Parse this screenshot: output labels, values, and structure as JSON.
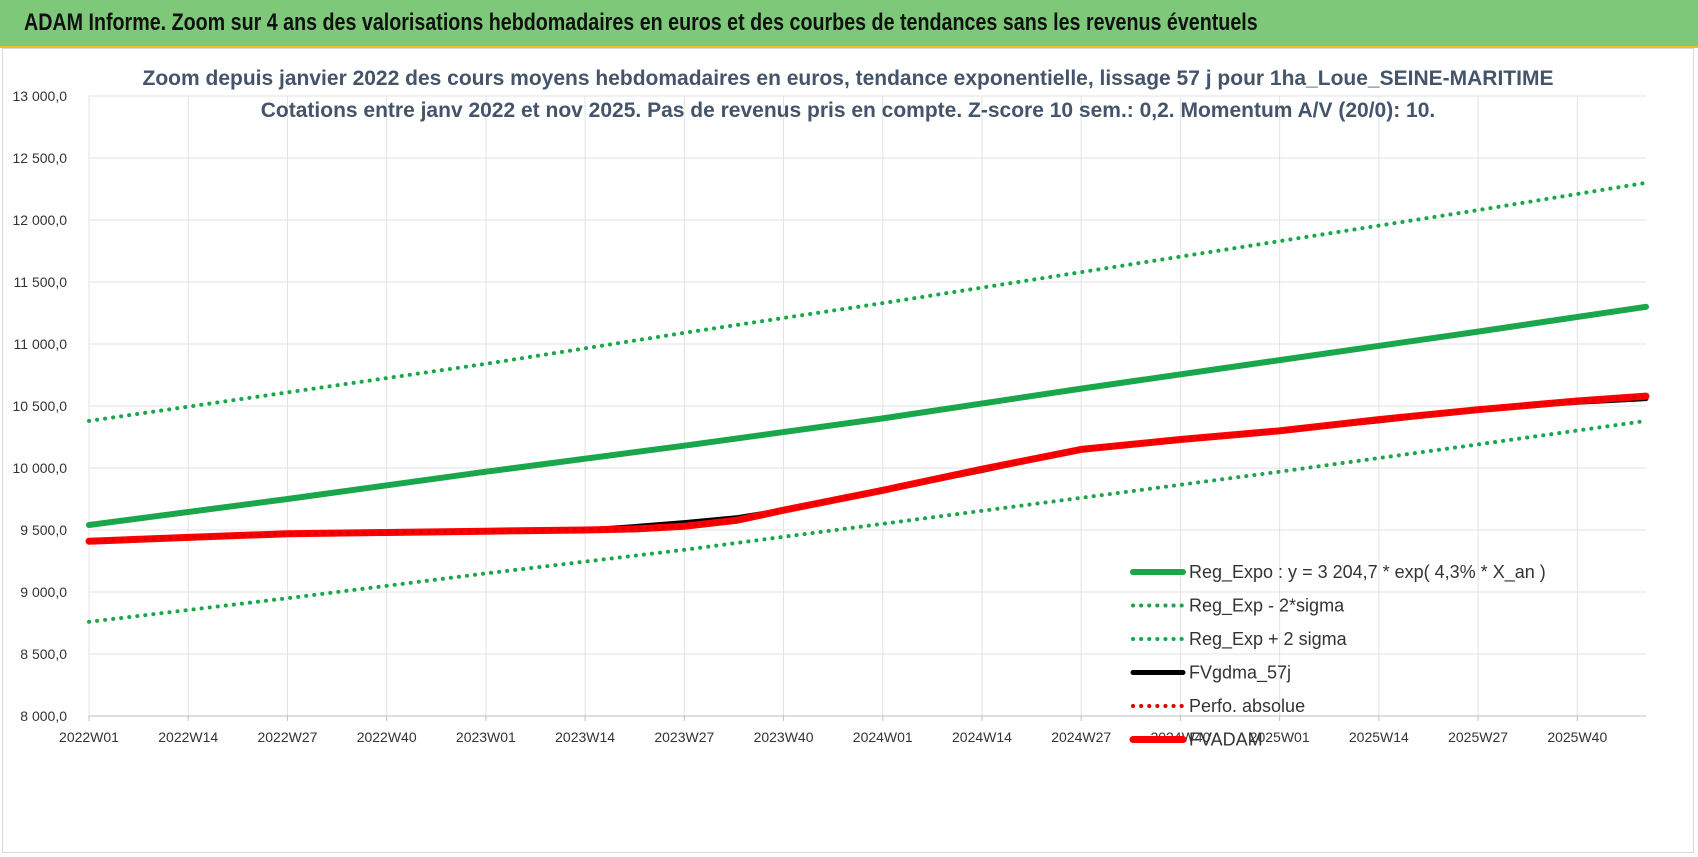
{
  "banner": {
    "title": "ADAM Informe. Zoom sur 4 ans des valorisations hebdomadaires en euros et des courbes de tendances sans les revenus éventuels",
    "color": "#7ec87a"
  },
  "chart_data": {
    "type": "line",
    "title_lines": [
      "Zoom depuis janvier 2022 des cours moyens hebdomadaires en euros, tendance exponentielle, lissage 57 j pour 1ha_Loue_SEINE-MARITIME",
      "Cotations entre janv 2022 et nov 2025. Pas de revenus pris en compte. Z-score 10 sem.: 0,2. Momentum A/V (20/0): 10."
    ],
    "xlabel": "",
    "ylabel": "",
    "ylim": [
      8000,
      13000
    ],
    "y_ticks": [
      "13 000,0",
      "12 500,0",
      "12 000,0",
      "11 500,0",
      "11 000,0",
      "10 500,0",
      "10 000,0",
      "9 500,0",
      "9 000,0",
      "8 500,0",
      "8 000,0"
    ],
    "y_tick_values": [
      13000,
      12500,
      12000,
      11500,
      11000,
      10500,
      10000,
      9500,
      9000,
      8500,
      8000
    ],
    "x_range": [
      0,
      204
    ],
    "x_ticks": [
      {
        "label": "2022W01",
        "x": 0
      },
      {
        "label": "2022W14",
        "x": 13
      },
      {
        "label": "2022W27",
        "x": 26
      },
      {
        "label": "2022W40",
        "x": 39
      },
      {
        "label": "2023W01",
        "x": 52
      },
      {
        "label": "2023W14",
        "x": 65
      },
      {
        "label": "2023W27",
        "x": 78
      },
      {
        "label": "2023W40",
        "x": 91
      },
      {
        "label": "2024W01",
        "x": 104
      },
      {
        "label": "2024W14",
        "x": 117
      },
      {
        "label": "2024W27",
        "x": 130
      },
      {
        "label": "2024W40",
        "x": 143
      },
      {
        "label": "2025W01",
        "x": 156
      },
      {
        "label": "2025W14",
        "x": 169
      },
      {
        "label": "2025W27",
        "x": 182
      },
      {
        "label": "2025W40",
        "x": 195
      }
    ],
    "grid": true,
    "legend_position": "bottom-right",
    "series": [
      {
        "name": "Reg_Expo : y = 3 204,7 * exp( 4,3% *  X_an )",
        "color": "#1aa64a",
        "style": "solid",
        "points": [
          [
            0,
            9540
          ],
          [
            26,
            9750
          ],
          [
            52,
            9970
          ],
          [
            78,
            10180
          ],
          [
            104,
            10400
          ],
          [
            130,
            10640
          ],
          [
            156,
            10870
          ],
          [
            182,
            11100
          ],
          [
            204,
            11300
          ]
        ]
      },
      {
        "name": "Reg_Exp - 2*sigma",
        "color": "#1aa64a",
        "style": "dotted",
        "points": [
          [
            0,
            8760
          ],
          [
            26,
            8950
          ],
          [
            52,
            9150
          ],
          [
            78,
            9340
          ],
          [
            104,
            9550
          ],
          [
            130,
            9760
          ],
          [
            156,
            9970
          ],
          [
            182,
            10190
          ],
          [
            204,
            10380
          ]
        ]
      },
      {
        "name": "Reg_Exp + 2 sigma",
        "color": "#1aa64a",
        "style": "dotted",
        "points": [
          [
            0,
            10380
          ],
          [
            26,
            10610
          ],
          [
            52,
            10840
          ],
          [
            78,
            11090
          ],
          [
            104,
            11330
          ],
          [
            130,
            11580
          ],
          [
            156,
            11830
          ],
          [
            182,
            12080
          ],
          [
            204,
            12300
          ]
        ]
      },
      {
        "name": "FVgdma_57j",
        "color": "#000000",
        "style": "solid",
        "points": [
          [
            0,
            9410
          ],
          [
            13,
            9440
          ],
          [
            26,
            9470
          ],
          [
            39,
            9480
          ],
          [
            52,
            9490
          ],
          [
            65,
            9500
          ],
          [
            72,
            9530
          ],
          [
            78,
            9560
          ],
          [
            85,
            9600
          ],
          [
            91,
            9660
          ],
          [
            104,
            9820
          ],
          [
            117,
            9980
          ],
          [
            130,
            10150
          ],
          [
            143,
            10230
          ],
          [
            156,
            10300
          ],
          [
            169,
            10380
          ],
          [
            182,
            10470
          ],
          [
            195,
            10530
          ],
          [
            204,
            10560
          ]
        ]
      },
      {
        "name": "Perfo. absolue",
        "color": "#e00000",
        "style": "dotted",
        "points": [
          [
            0,
            9410
          ],
          [
            13,
            9440
          ],
          [
            26,
            9470
          ],
          [
            39,
            9480
          ],
          [
            52,
            9490
          ],
          [
            65,
            9500
          ],
          [
            72,
            9510
          ],
          [
            78,
            9530
          ],
          [
            85,
            9580
          ],
          [
            91,
            9660
          ],
          [
            104,
            9820
          ],
          [
            117,
            9990
          ],
          [
            130,
            10150
          ],
          [
            143,
            10230
          ],
          [
            156,
            10300
          ],
          [
            169,
            10390
          ],
          [
            182,
            10470
          ],
          [
            195,
            10540
          ],
          [
            204,
            10580
          ]
        ]
      },
      {
        "name": "FVADAM",
        "color": "#ff0000",
        "style": "solid",
        "points": [
          [
            0,
            9410
          ],
          [
            13,
            9440
          ],
          [
            26,
            9470
          ],
          [
            39,
            9480
          ],
          [
            52,
            9490
          ],
          [
            65,
            9500
          ],
          [
            72,
            9510
          ],
          [
            78,
            9530
          ],
          [
            85,
            9580
          ],
          [
            91,
            9660
          ],
          [
            104,
            9820
          ],
          [
            117,
            9990
          ],
          [
            130,
            10150
          ],
          [
            143,
            10230
          ],
          [
            156,
            10300
          ],
          [
            169,
            10390
          ],
          [
            182,
            10470
          ],
          [
            195,
            10540
          ],
          [
            204,
            10580
          ]
        ]
      }
    ]
  }
}
